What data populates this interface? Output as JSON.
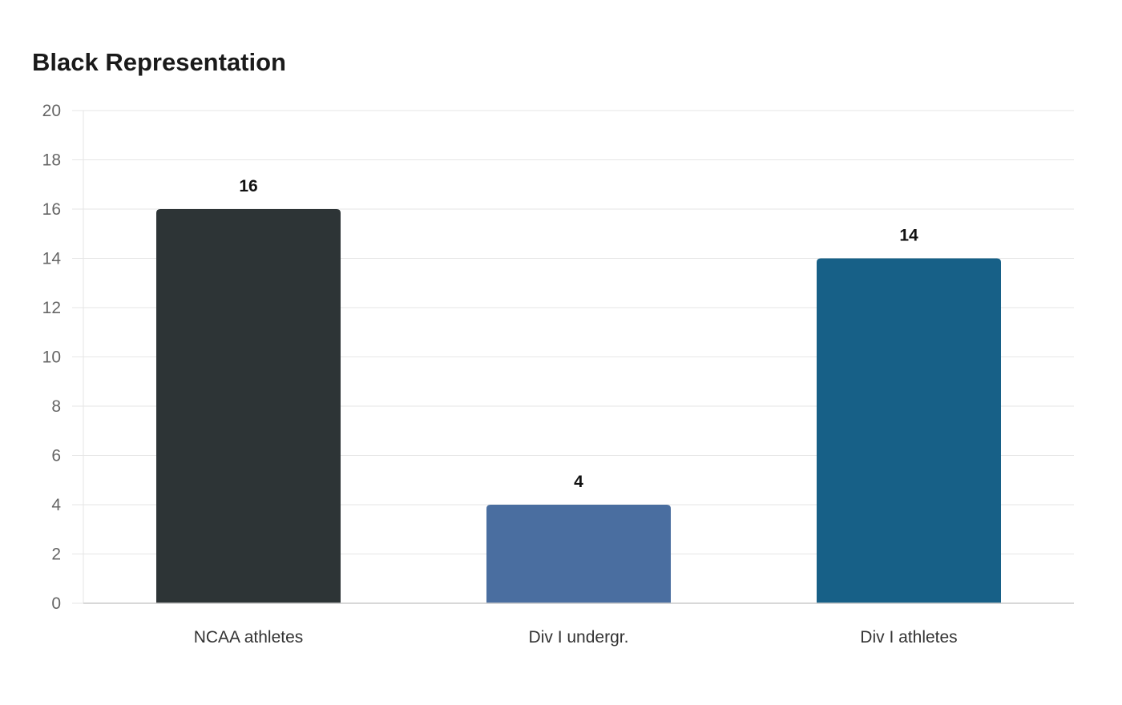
{
  "chart_data": {
    "type": "bar",
    "title": "Black Representation",
    "xlabel": "",
    "ylabel": "",
    "categories": [
      "NCAA athletes",
      "Div I undergr.",
      "Div I athletes"
    ],
    "values": [
      16,
      4,
      14
    ],
    "colors": [
      "#2d3436",
      "#4a6ea0",
      "#176087"
    ],
    "ylim": [
      0,
      20
    ],
    "yticks": [
      0,
      2,
      4,
      6,
      8,
      10,
      12,
      14,
      16,
      18,
      20
    ],
    "grid": true,
    "data_labels": true
  }
}
